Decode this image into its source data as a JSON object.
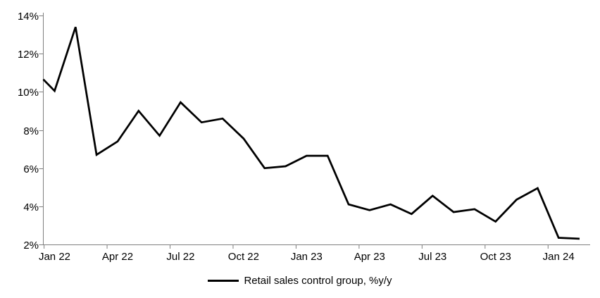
{
  "chart_data": {
    "type": "line",
    "title": "",
    "categories": [
      "Jan 22",
      "Feb 22",
      "Mar 22",
      "Apr 22",
      "May 22",
      "Jun 22",
      "Jul 22",
      "Aug 22",
      "Sep 22",
      "Oct 22",
      "Nov 22",
      "Dec 22",
      "Jan 23",
      "Feb 23",
      "Mar 23",
      "Apr 23",
      "May 23",
      "Jun 23",
      "Jul 23",
      "Aug 23",
      "Sep 23",
      "Oct 23",
      "Nov 23",
      "Dec 23",
      "Jan 24",
      "Feb 24"
    ],
    "series": [
      {
        "name": "Retail sales control group, %y/y",
        "values": [
          10.05,
          13.4,
          6.7,
          7.4,
          9.0,
          7.7,
          9.45,
          8.4,
          8.6,
          7.55,
          6.0,
          6.1,
          6.65,
          6.65,
          4.1,
          3.8,
          4.1,
          3.6,
          4.55,
          3.7,
          3.85,
          3.2,
          4.35,
          4.95,
          2.35,
          2.3
        ],
        "color": "#000000",
        "left_edge_clip_value": 10.65
      }
    ],
    "xlabel": "",
    "ylabel": "",
    "ylim": [
      2,
      14
    ],
    "y_tick_values": [
      2,
      4,
      6,
      8,
      10,
      12,
      14
    ],
    "y_tick_labels": [
      "2%",
      "4%",
      "6%",
      "8%",
      "10%",
      "12%",
      "14%"
    ],
    "x_tick_labels": [
      "Jan 22",
      "Apr 22",
      "Jul 22",
      "Oct 22",
      "Jan 23",
      "Apr 23",
      "Jul 23",
      "Oct 23",
      "Jan 24"
    ],
    "x_label_every_n_months": 3,
    "grid": "off",
    "legend_position": "bottom-center",
    "axis_color": "#7f7f7f",
    "text_color": "#000000",
    "background_color": "#ffffff"
  },
  "legend": {
    "label": "Retail sales control group, %y/y"
  }
}
